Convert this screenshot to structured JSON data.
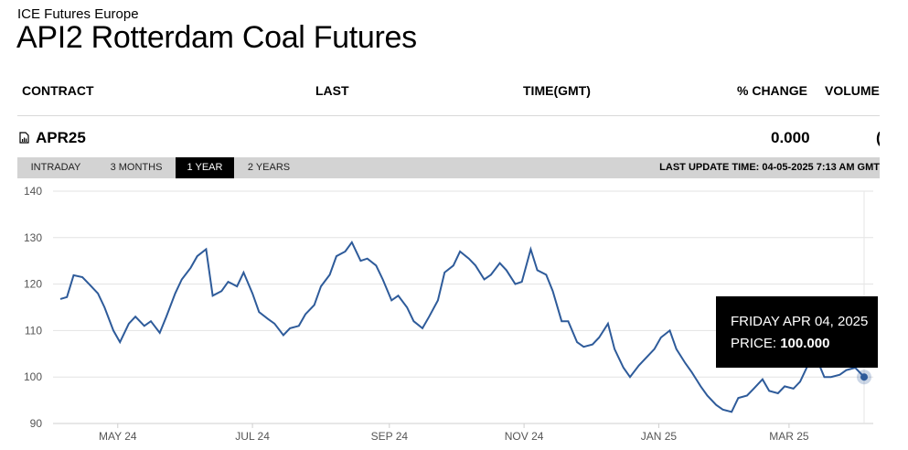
{
  "exchange": "ICE Futures Europe",
  "title": "API2 Rotterdam Coal Futures",
  "columns": [
    "CONTRACT",
    "LAST",
    "TIME(GMT)",
    "% CHANGE",
    "VOLUME"
  ],
  "row": {
    "contract": "APR25",
    "change": "0.000",
    "volume_partial": "("
  },
  "tabs": [
    "INTRADAY",
    "3 MONTHS",
    "1 YEAR",
    "2 YEARS"
  ],
  "active_tab": "1 YEAR",
  "last_update": "LAST UPDATE TIME: 04-05-2025 7:13 AM GMT",
  "tooltip": {
    "date": "FRIDAY APR 04, 2025",
    "price_label": "PRICE:",
    "price_value": "100.000"
  },
  "colors": {
    "line": "#2e5b9a",
    "tab_bar": "#d3d3d3",
    "tooltip_bg": "#000000"
  },
  "chart_data": {
    "type": "line",
    "ylim": [
      90,
      140
    ],
    "y_ticks": [
      90,
      100,
      110,
      120,
      130,
      140
    ],
    "x_ticks": [
      "MAY 24",
      "JUL 24",
      "SEP 24",
      "NOV 24",
      "JAN 25",
      "MAR 25"
    ],
    "grid": "horizontal",
    "x": [
      "2024-04-05",
      "2024-04-08",
      "2024-04-11",
      "2024-04-15",
      "2024-04-18",
      "2024-04-22",
      "2024-04-25",
      "2024-04-29",
      "2024-05-02",
      "2024-05-06",
      "2024-05-09",
      "2024-05-13",
      "2024-05-16",
      "2024-05-20",
      "2024-05-23",
      "2024-05-27",
      "2024-05-30",
      "2024-06-03",
      "2024-06-06",
      "2024-06-10",
      "2024-06-13",
      "2024-06-17",
      "2024-06-20",
      "2024-06-24",
      "2024-06-27",
      "2024-07-01",
      "2024-07-04",
      "2024-07-08",
      "2024-07-11",
      "2024-07-15",
      "2024-07-18",
      "2024-07-22",
      "2024-07-25",
      "2024-07-29",
      "2024-08-01",
      "2024-08-05",
      "2024-08-08",
      "2024-08-12",
      "2024-08-15",
      "2024-08-19",
      "2024-08-22",
      "2024-08-26",
      "2024-08-29",
      "2024-09-02",
      "2024-09-05",
      "2024-09-09",
      "2024-09-12",
      "2024-09-16",
      "2024-09-19",
      "2024-09-23",
      "2024-09-26",
      "2024-09-30",
      "2024-10-03",
      "2024-10-07",
      "2024-10-10",
      "2024-10-14",
      "2024-10-17",
      "2024-10-21",
      "2024-10-24",
      "2024-10-28",
      "2024-10-31",
      "2024-11-04",
      "2024-11-07",
      "2024-11-11",
      "2024-11-14",
      "2024-11-18",
      "2024-11-21",
      "2024-11-25",
      "2024-11-28",
      "2024-12-02",
      "2024-12-05",
      "2024-12-09",
      "2024-12-12",
      "2024-12-16",
      "2024-12-19",
      "2024-12-23",
      "2024-12-30",
      "2025-01-02",
      "2025-01-06",
      "2025-01-09",
      "2025-01-13",
      "2025-01-16",
      "2025-01-20",
      "2025-01-23",
      "2025-01-27",
      "2025-01-30",
      "2025-02-03",
      "2025-02-06",
      "2025-02-10",
      "2025-02-13",
      "2025-02-17",
      "2025-02-20",
      "2025-02-24",
      "2025-02-27",
      "2025-03-03",
      "2025-03-06",
      "2025-03-10",
      "2025-03-13",
      "2025-03-17",
      "2025-03-20",
      "2025-03-24",
      "2025-03-27",
      "2025-03-31",
      "2025-04-04"
    ],
    "series": [
      {
        "values": [
          116.8,
          117.2,
          121.9,
          121.5,
          120.0,
          118.0,
          115.0,
          110.0,
          107.5,
          111.5,
          113.0,
          111.0,
          112.0,
          109.5,
          113.0,
          118.0,
          121.0,
          123.5,
          126.0,
          127.5,
          117.5,
          118.5,
          120.5,
          119.5,
          122.5,
          118.0,
          114.0,
          112.5,
          111.5,
          109.0,
          110.5,
          111.0,
          113.5,
          115.5,
          119.5,
          122.0,
          126.0,
          127.0,
          129.0,
          125.0,
          125.5,
          124.0,
          121.0,
          116.5,
          117.5,
          115.0,
          112.0,
          110.5,
          113.0,
          116.5,
          122.5,
          124.0,
          127.0,
          125.5,
          124.0,
          121.0,
          122.0,
          124.5,
          123.0,
          120.0,
          120.5,
          127.5,
          123.0,
          122.0,
          118.5,
          112.0,
          112.0,
          107.5,
          106.5,
          107.0,
          108.5,
          111.5,
          106.0,
          102.0,
          100.0,
          102.5,
          106.0,
          108.5,
          110.0,
          106.0,
          103.0,
          101.0,
          98.0,
          96.0,
          94.0,
          93.0,
          92.5,
          95.5,
          96.0,
          97.5,
          99.5,
          97.0,
          96.5,
          98.0,
          97.5,
          99.0,
          103.0,
          104.5,
          100.0,
          100.0,
          100.5,
          101.5,
          102.0,
          100.0
        ]
      }
    ]
  }
}
